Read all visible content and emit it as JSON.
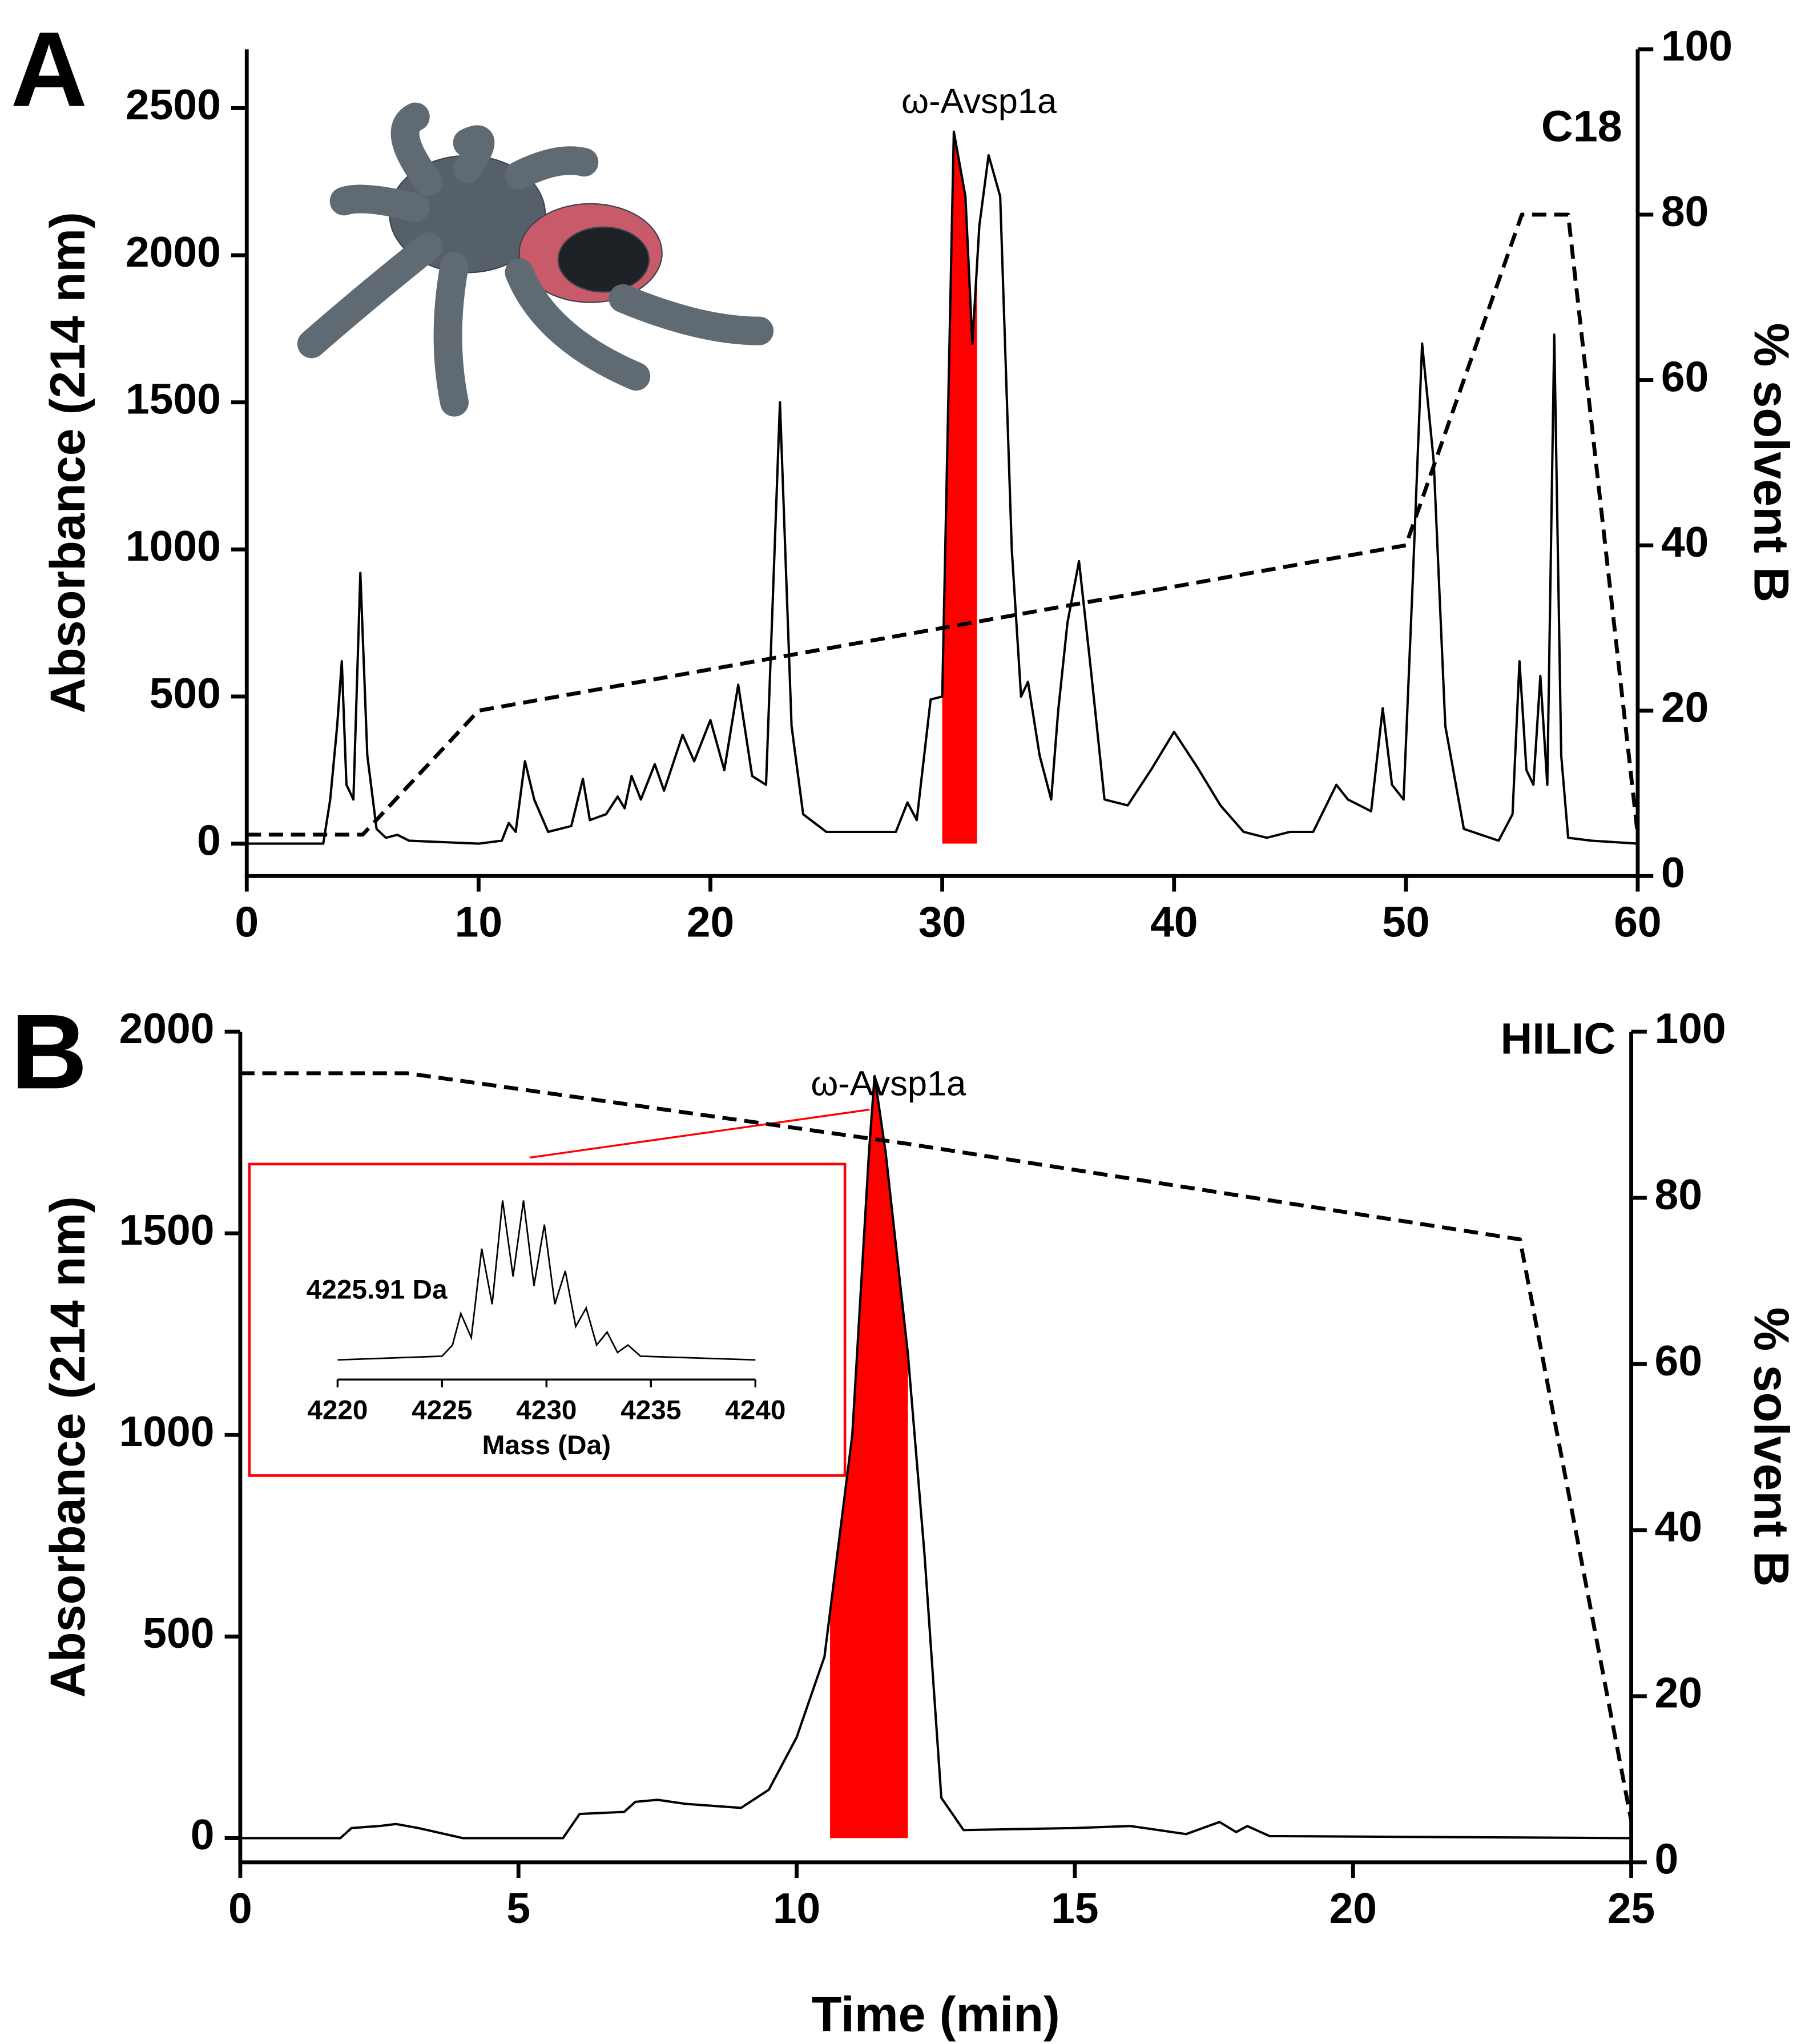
{
  "chart_data": [
    {
      "type": "line",
      "panel": "A",
      "column": "C18",
      "peak_label": "ω-Avsp1a",
      "y_label": "Absorbance (214 nm)",
      "y2_label": "% solvent B",
      "xlim": [
        0,
        60
      ],
      "xticks": [
        0,
        10,
        20,
        30,
        40,
        50,
        60
      ],
      "ylim": [
        -110,
        2700
      ],
      "yticks": [
        0,
        500,
        1000,
        1500,
        2000,
        2500
      ],
      "y2lim": [
        0,
        100
      ],
      "y2ticks": [
        0,
        20,
        40,
        60,
        80,
        100
      ],
      "series": [
        {
          "color": "#000000",
          "x": [
            0,
            3.3,
            3.6,
            3.9,
            4.1,
            4.3,
            4.6,
            4.9,
            5.2,
            5.6,
            6,
            6.5,
            7,
            10,
            11,
            11.3,
            11.6,
            12,
            12.4,
            13,
            14,
            14.5,
            14.8,
            15.5,
            16,
            16.3,
            16.6,
            17,
            17.6,
            18,
            18.8,
            19.3,
            20,
            20.6,
            21.2,
            21.8,
            22.4,
            23,
            23.5,
            24,
            25,
            28,
            28.5,
            28.9,
            29.5,
            30,
            30.5,
            31,
            31.3,
            31.6,
            32,
            32.5,
            33,
            33.4,
            33.7,
            34.2,
            34.7,
            35,
            35.4,
            35.9,
            36.4,
            37,
            38,
            39,
            40,
            41,
            42,
            43,
            44,
            45,
            46,
            47,
            47.5,
            48,
            48.5,
            49,
            49.4,
            49.9,
            50.3,
            50.7,
            51.2,
            51.7,
            52.5,
            54,
            54.6,
            54.9,
            55.2,
            55.5,
            55.8,
            56.1,
            56.4,
            56.7,
            57,
            58,
            60
          ],
          "values": [
            0,
            0,
            150,
            400,
            620,
            200,
            150,
            920,
            300,
            50,
            20,
            30,
            10,
            0,
            10,
            70,
            40,
            280,
            150,
            40,
            60,
            220,
            80,
            100,
            160,
            120,
            230,
            150,
            270,
            180,
            370,
            280,
            420,
            250,
            540,
            230,
            200,
            1500,
            400,
            100,
            40,
            40,
            140,
            80,
            490,
            500,
            2420,
            2200,
            1700,
            2100,
            2340,
            2200,
            1000,
            500,
            550,
            300,
            150,
            450,
            750,
            960,
            600,
            150,
            130,
            250,
            380,
            260,
            130,
            40,
            20,
            40,
            40,
            200,
            150,
            130,
            110,
            460,
            200,
            150,
            900,
            1700,
            1300,
            400,
            50,
            10,
            100,
            620,
            250,
            200,
            570,
            200,
            1730,
            300,
            20,
            10,
            0
          ]
        },
        {
          "color": "#000000",
          "axis": "y2",
          "dashed": true,
          "x": [
            0,
            5,
            10,
            50,
            55,
            57,
            60
          ],
          "values": [
            5,
            5,
            20,
            40,
            80,
            80,
            5
          ]
        }
      ],
      "highlight": {
        "x": [
          30,
          31.5
        ],
        "color": "#ff0000"
      }
    },
    {
      "type": "line",
      "panel": "B",
      "column": "HILIC",
      "peak_label": "ω-Avsp1a",
      "x_label": "Time (min)",
      "y_label": "Absorbance (214 nm)",
      "y2_label": "% solvent B",
      "xlim": [
        0,
        25
      ],
      "xticks": [
        0,
        5,
        10,
        15,
        20,
        25
      ],
      "ylim": [
        -60,
        2000
      ],
      "yticks": [
        0,
        500,
        1000,
        1500,
        2000
      ],
      "y2lim": [
        0,
        100
      ],
      "y2ticks": [
        0,
        20,
        40,
        60,
        80,
        100
      ],
      "series": [
        {
          "color": "#000000",
          "x": [
            0,
            1.8,
            2,
            2.5,
            2.8,
            3.2,
            4,
            5.8,
            6.1,
            6.9,
            7.1,
            7.5,
            8,
            8.5,
            9,
            9.5,
            10,
            10.5,
            11,
            11.3,
            11.4,
            11.6,
            12,
            12.3,
            12.6,
            13,
            15,
            16,
            17,
            17.6,
            17.9,
            18.1,
            18.5,
            25
          ],
          "values": [
            0,
            0,
            25,
            30,
            35,
            25,
            0,
            0,
            60,
            65,
            90,
            95,
            85,
            80,
            75,
            120,
            250,
            450,
            1000,
            1700,
            1890,
            1700,
            1200,
            700,
            100,
            20,
            25,
            30,
            10,
            40,
            15,
            30,
            5,
            0
          ]
        },
        {
          "color": "#000000",
          "axis": "y2",
          "dashed": true,
          "x": [
            0,
            3,
            12,
            23,
            25
          ],
          "values": [
            95,
            95,
            86.5,
            75,
            5
          ]
        }
      ],
      "highlight": {
        "x": [
          10.6,
          12
        ],
        "color": "#ff0000"
      },
      "inset": {
        "type": "line",
        "annotation": "4225.91 Da",
        "x_label": "Mass (Da)",
        "border_color": "#ff0000",
        "color": "#000000",
        "xlim": [
          4220,
          4240
        ],
        "xticks": [
          4220,
          4225,
          4230,
          4235,
          4240
        ],
        "ylim": [
          -5,
          100
        ],
        "x": [
          4220,
          4225,
          4225.5,
          4225.9,
          4226.4,
          4226.9,
          4227.4,
          4227.9,
          4228.4,
          4228.9,
          4229.4,
          4229.9,
          4230.4,
          4230.9,
          4231.4,
          4231.9,
          4232.4,
          4232.9,
          4233.4,
          4233.9,
          4234.5,
          4240
        ],
        "values": [
          0,
          2,
          8,
          25,
          12,
          60,
          30,
          86,
          45,
          86,
          40,
          73,
          30,
          48,
          18,
          28,
          8,
          15,
          4,
          8,
          2,
          0
        ]
      }
    }
  ]
}
